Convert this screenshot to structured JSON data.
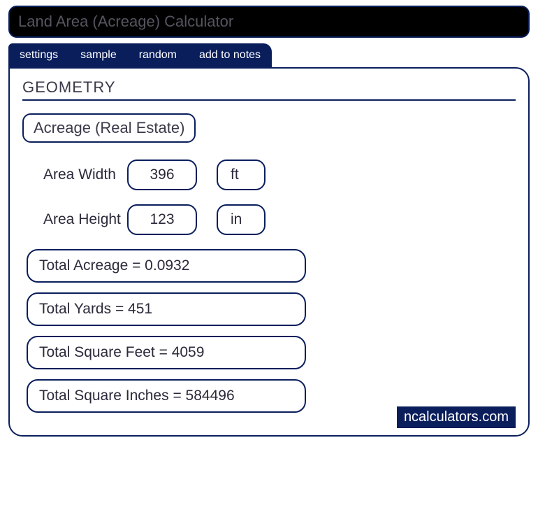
{
  "title": "Land Area (Acreage) Calculator",
  "tabs": {
    "settings": "settings",
    "sample": "sample",
    "random": "random",
    "notes": "add to notes"
  },
  "section": "GEOMETRY",
  "subheader": "Acreage (Real Estate)",
  "inputs": {
    "width": {
      "label": "Area Width",
      "value": "396",
      "unit": "ft"
    },
    "height": {
      "label": "Area Height",
      "value": "123",
      "unit": "in"
    }
  },
  "results": {
    "acreage": "Total Acreage  =  0.0932",
    "yards": "Total Yards  =  451",
    "sqft": "Total Square Feet  =  4059",
    "sqin": "Total Square Inches  =  584496"
  },
  "brand": "ncalculators.com",
  "colors": {
    "primary": "#0a1e5c",
    "text": "#2a2a3a",
    "muted": "#555560",
    "bg": "#ffffff"
  }
}
